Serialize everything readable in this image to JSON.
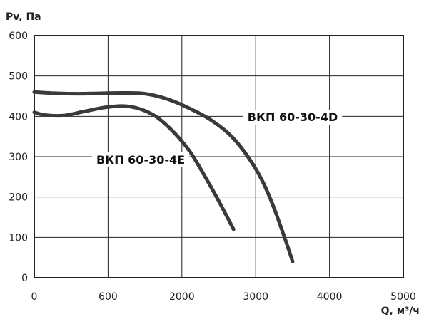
{
  "chart_data": {
    "type": "line",
    "ylabel": "Pv, Па",
    "xlabel": "Q, м³/ч",
    "xlim": [
      0,
      5000
    ],
    "ylim": [
      0,
      600
    ],
    "x_ticks": [
      "0",
      "600",
      "2000",
      "3000",
      "4000",
      "5000"
    ],
    "y_ticks": [
      "0",
      "100",
      "200",
      "300",
      "400",
      "500",
      "600"
    ],
    "grid": true,
    "series": [
      {
        "name": "ВКП 60-30-4D",
        "color": "#3a3a3a",
        "x": [
          0,
          300,
          600,
          900,
          1200,
          1500,
          1800,
          2100,
          2400,
          2700,
          3000,
          3200,
          3400,
          3500
        ],
        "y": [
          460,
          457,
          456,
          457,
          458,
          456,
          443,
          420,
          390,
          345,
          270,
          195,
          95,
          40
        ]
      },
      {
        "name": "ВКП 60-30-4E",
        "color": "#3a3a3a",
        "x": [
          0,
          150,
          400,
          700,
          1000,
          1300,
          1600,
          1850,
          2100,
          2300,
          2500,
          2700
        ],
        "y": [
          410,
          403,
          402,
          413,
          423,
          424,
          405,
          368,
          315,
          255,
          190,
          120
        ]
      }
    ],
    "annotations": [
      {
        "text": "ВКП 60-30-4D",
        "series": 0
      },
      {
        "text": "ВКП 60-30-4E",
        "series": 1
      }
    ]
  }
}
